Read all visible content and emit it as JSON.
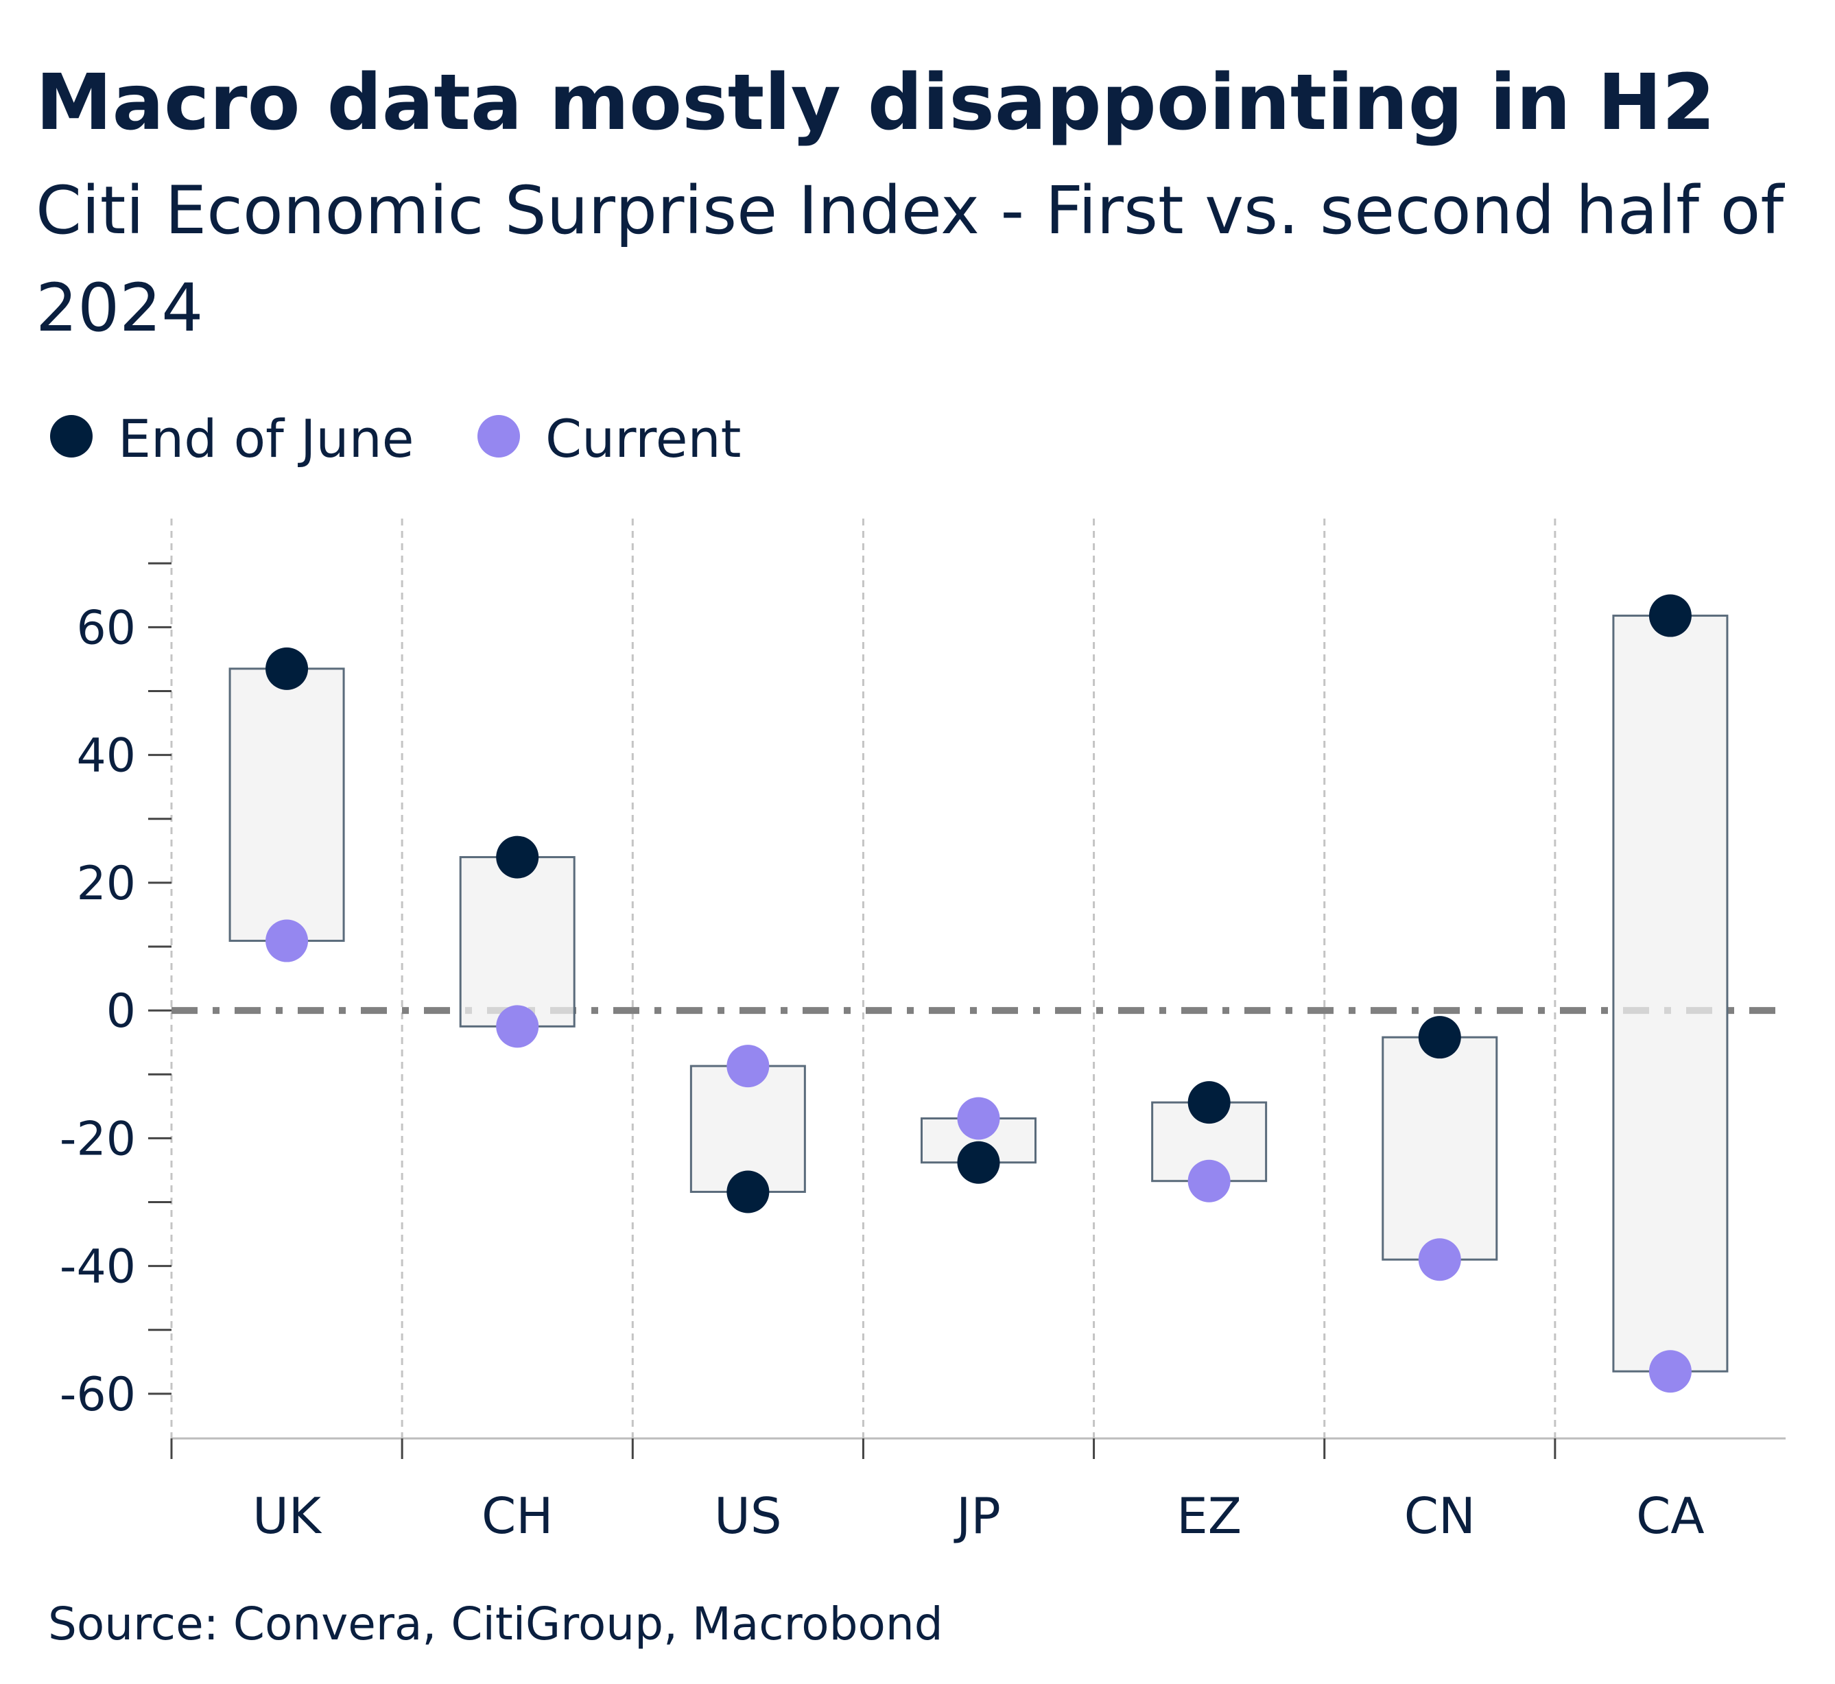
{
  "title": "Macro data mostly disappointing in H2",
  "subtitle_line1": "Citi Economic Surprise Index - First vs. second half of",
  "subtitle_line2": "2024",
  "source": "Source: Convera, CitiGroup, Macrobond",
  "colors": {
    "end_of_june": "#001e3c",
    "current": "#9587f0",
    "range_box_fill": "#f0f0f0",
    "range_box_stroke": "#5a6b7b",
    "zero_line": "#808080",
    "text": "#0a1f3f"
  },
  "chart_data": {
    "type": "scatter",
    "title": "Macro data mostly disappointing in H2",
    "subtitle": "Citi Economic Surprise Index - First vs. second half of 2024",
    "categories": [
      "UK",
      "CH",
      "US",
      "JP",
      "EZ",
      "CN",
      "CA"
    ],
    "series": [
      {
        "name": "End of June",
        "values": [
          53.5,
          24.0,
          -28.4,
          -23.8,
          -14.4,
          -4.2,
          61.8
        ]
      },
      {
        "name": "Current",
        "values": [
          10.9,
          -2.5,
          -8.7,
          -16.9,
          -26.7,
          -39.0,
          -56.5
        ]
      }
    ],
    "range_boxes": "shaded box spans End of June to Current for each category",
    "yticks": [
      -60,
      -40,
      -20,
      0,
      20,
      40,
      60
    ],
    "ytick_labels": [
      "-60",
      "-40",
      "-20",
      "0",
      "20",
      "40",
      "60"
    ],
    "ylim": [
      -67,
      77
    ],
    "reference_line": {
      "y": 0,
      "style": "dash-dot"
    },
    "grid": "vertical dashed separators between categories",
    "legend": {
      "position": "top-left",
      "entries": [
        "End of June",
        "Current"
      ]
    },
    "xlabel": "",
    "ylabel": ""
  }
}
